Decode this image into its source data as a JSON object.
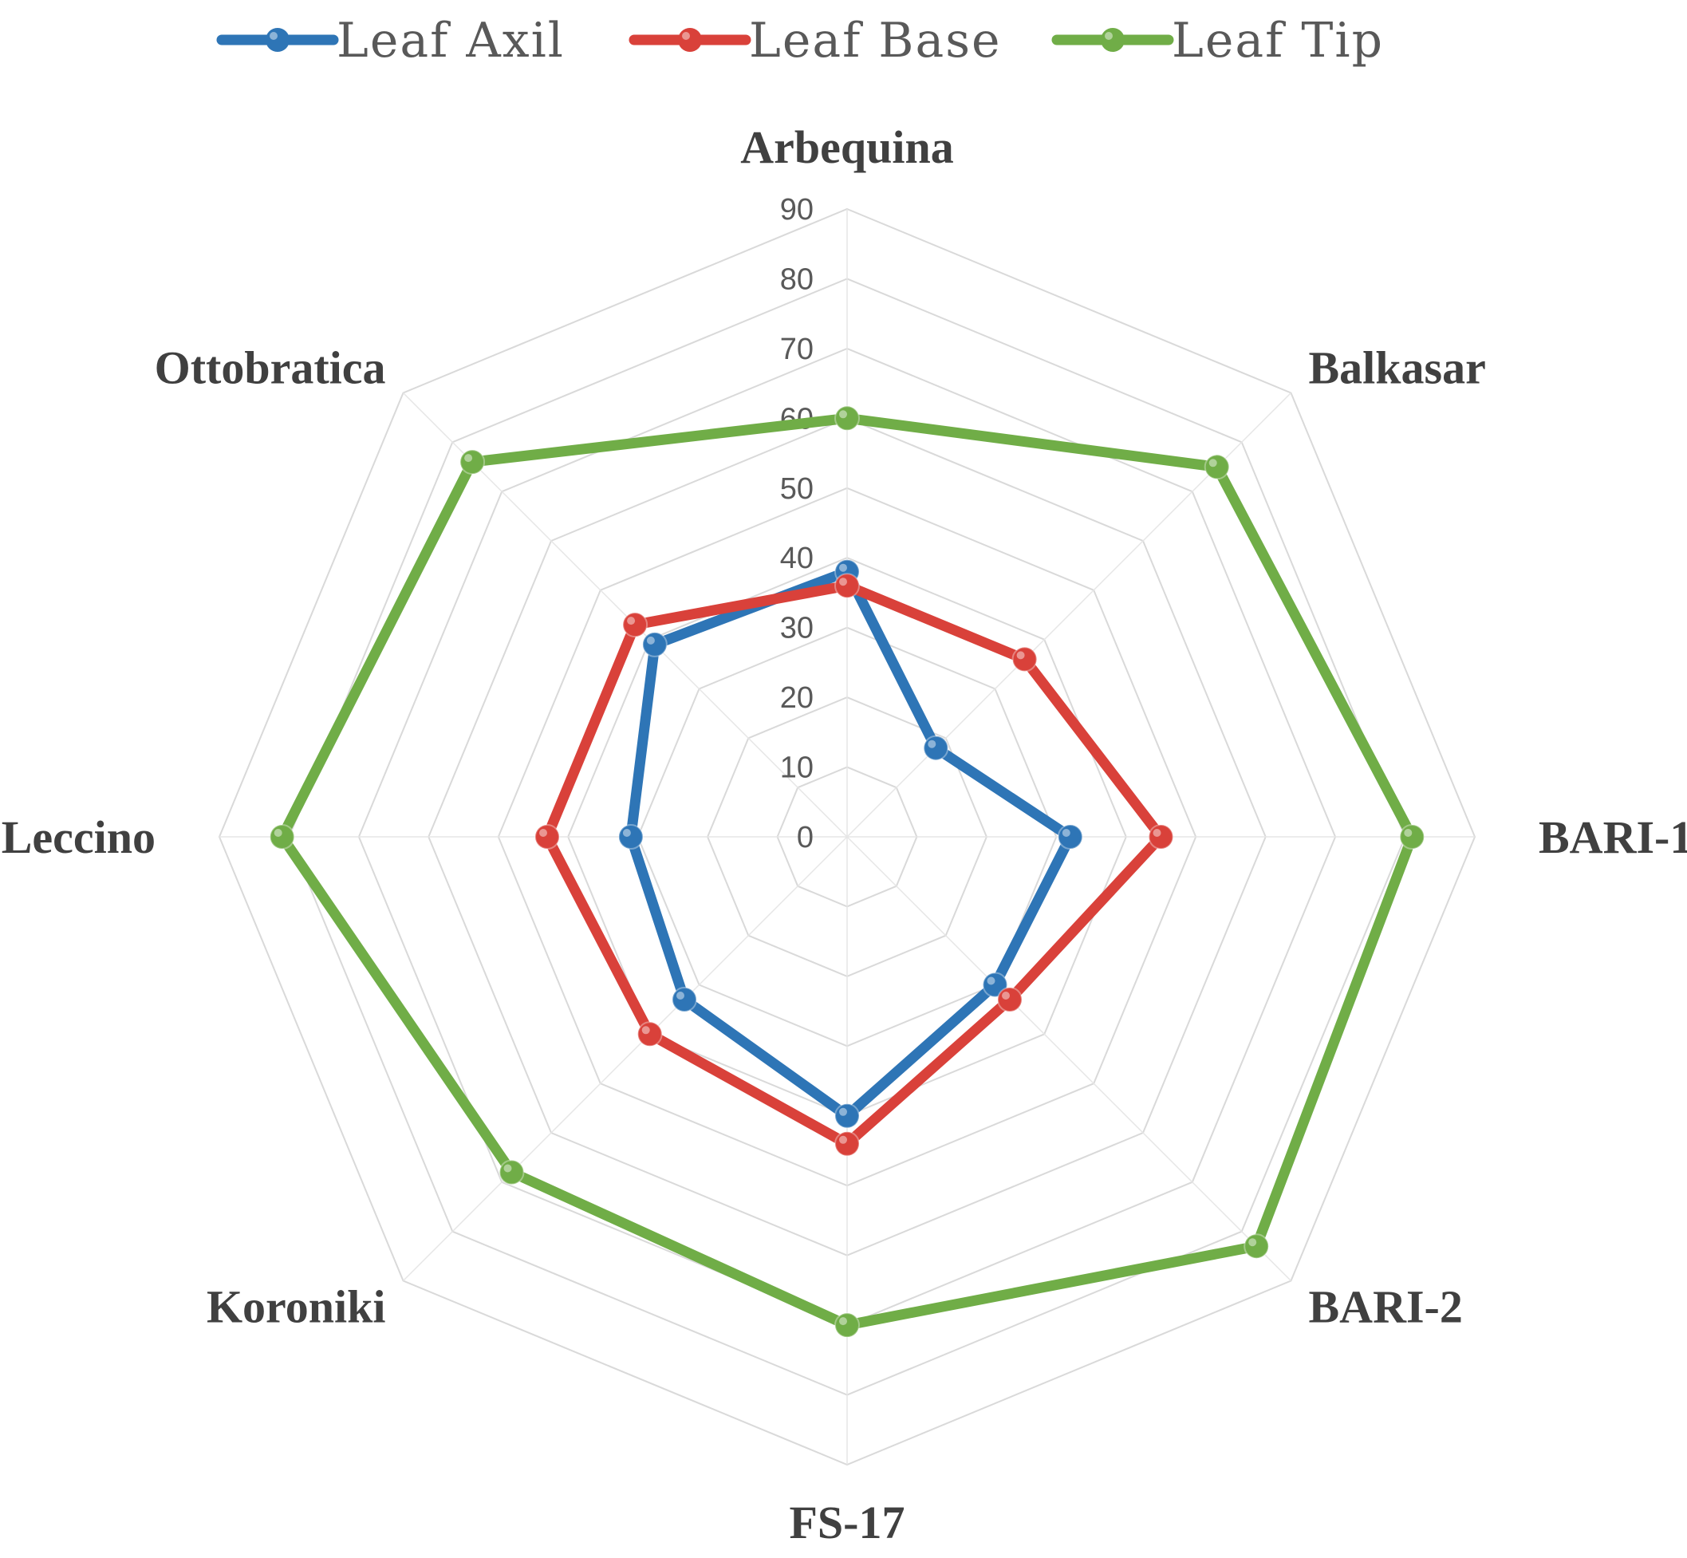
{
  "chart_data": {
    "type": "radar",
    "title": "",
    "categories": [
      "Arbequina",
      "Balkasar",
      "BARI-1",
      "BARI-2",
      "FS-17",
      "Koroniki",
      "Leccino",
      "Ottobratica"
    ],
    "rlim": [
      0,
      90
    ],
    "ticks": [
      "0",
      "10",
      "20",
      "30",
      "40",
      "50",
      "60",
      "70",
      "80",
      "90"
    ],
    "grid": true,
    "legend_position": "top",
    "series": [
      {
        "name": "Leaf Axil",
        "color": "#2e75b6",
        "values": [
          38,
          18,
          32,
          30,
          40,
          33,
          31,
          39
        ]
      },
      {
        "name": "Leaf Base",
        "color": "#d9413a",
        "values": [
          36,
          36,
          45,
          33,
          44,
          40,
          43,
          43
        ]
      },
      {
        "name": "Leaf Tip",
        "color": "#70ad47",
        "values": [
          60,
          75,
          81,
          83,
          70,
          68,
          81,
          76
        ]
      }
    ]
  }
}
